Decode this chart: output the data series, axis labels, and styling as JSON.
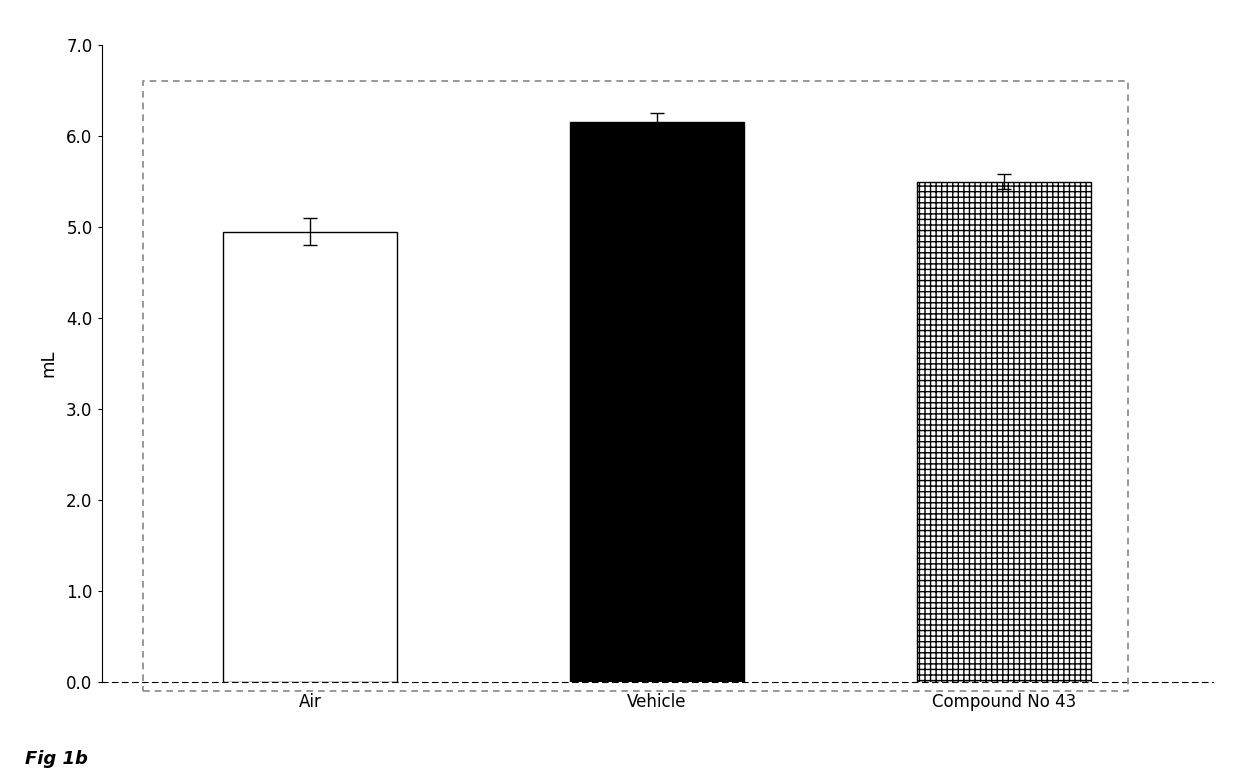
{
  "categories": [
    "Air",
    "Vehicle",
    "Compound No 43"
  ],
  "values": [
    4.95,
    6.15,
    5.5
  ],
  "errors": [
    0.15,
    0.1,
    0.08
  ],
  "bar_colors": [
    "white",
    "black",
    "white"
  ],
  "bar_edgecolors": [
    "black",
    "black",
    "black"
  ],
  "ylabel": "mL",
  "ylim": [
    0.0,
    7.0
  ],
  "yticks": [
    0.0,
    1.0,
    2.0,
    3.0,
    4.0,
    5.0,
    6.0,
    7.0
  ],
  "caption": "Fig 1b",
  "background_color": "#ffffff",
  "figure_background": "#ffffff",
  "bar_width": 0.5,
  "figure_width": 12.4,
  "figure_height": 7.72,
  "dpi": 100
}
